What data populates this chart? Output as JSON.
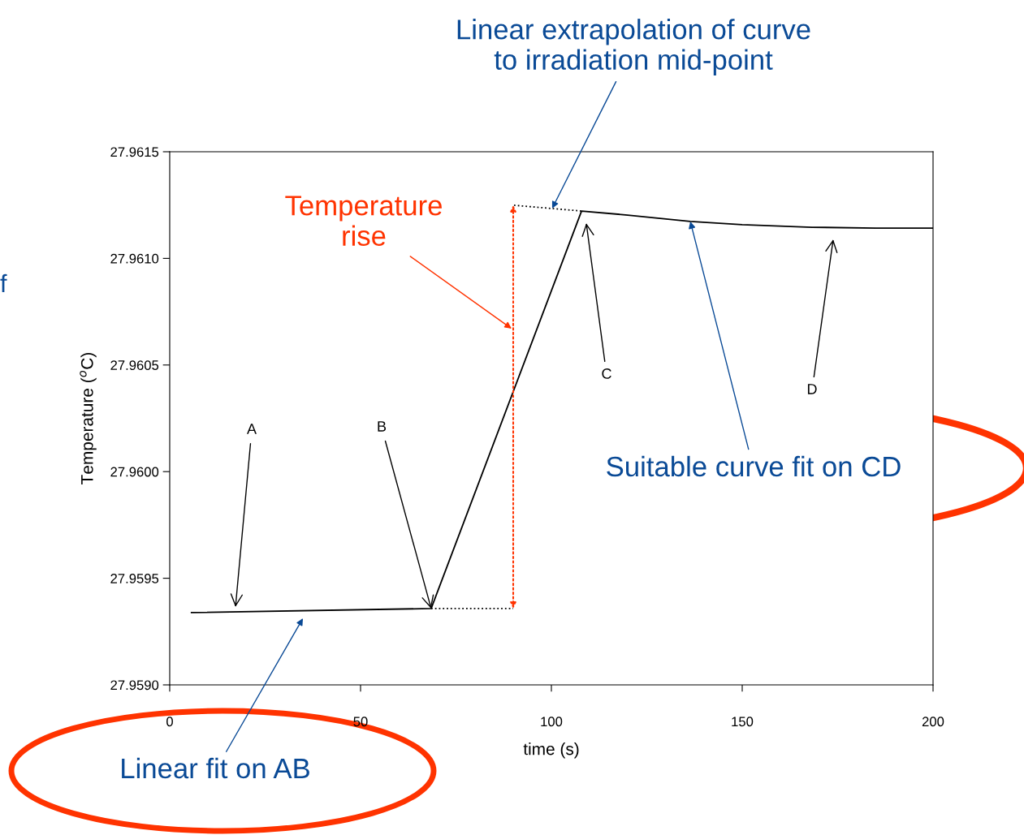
{
  "chart_data": {
    "type": "line",
    "xlabel": "time (s)",
    "ylabel": "Temperature ($^{o}$C)",
    "xlim": [
      0,
      200
    ],
    "xticks": [
      0,
      50,
      100,
      150,
      200
    ],
    "ylim": [
      27.959,
      27.9615
    ],
    "yticks": [
      {
        "value": 27.959,
        "label": "27.9590"
      },
      {
        "value": 27.9595,
        "label": "27.9595"
      },
      {
        "value": 27.96,
        "label": "27.9600"
      },
      {
        "value": 27.9605,
        "label": "27.9605"
      },
      {
        "value": 27.961,
        "label": "27.9610"
      },
      {
        "value": 27.9615,
        "label": "27.9615"
      }
    ],
    "grid": false,
    "legend": false,
    "marker": "none",
    "series": [
      {
        "color": "#000000",
        "line_style": "solid",
        "x": [
          5.7,
          68.5,
          107.9,
          120,
          136.4,
          150,
          168.3,
          185,
          200
        ],
        "values": [
          27.959339,
          27.959358,
          27.961222,
          27.961203,
          27.961173,
          27.961158,
          27.961146,
          27.961142,
          27.961142
        ]
      },
      {
        "color": "#000000",
        "line_style": "dotted",
        "x": [
          68.5,
          90
        ],
        "values": [
          27.959358,
          27.959358
        ]
      },
      {
        "color": "#000000",
        "line_style": "dotted",
        "x": [
          90.2,
          107.9
        ],
        "values": [
          27.961249,
          27.961222
        ]
      }
    ],
    "annotations": [
      "A",
      {
        "text": "B",
        "x": 68.5,
        "y": 27.959358
      },
      "C",
      "D",
      "Temperature\nrise",
      {
        "text": "Linear extrapolation of curve\nto irradiation mid-point",
        "x": 100.2,
        "y": 27.961234
      },
      {
        "text": "Suitable curve fit on CD",
        "x": 136.4,
        "y": 27.961173
      },
      "Linear fit on AB",
      "f"
    ]
  }
}
